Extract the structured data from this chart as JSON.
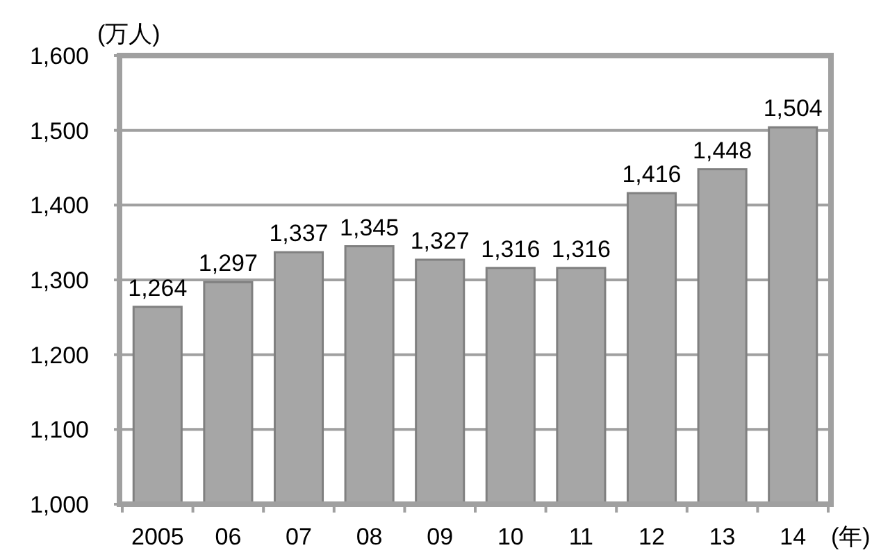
{
  "chart_data": {
    "type": "bar",
    "ylabel": "(万人)",
    "xlabel": "(年)",
    "categories": [
      "2005",
      "06",
      "07",
      "08",
      "09",
      "10",
      "11",
      "12",
      "13",
      "14"
    ],
    "values": [
      1264,
      1297,
      1337,
      1345,
      1327,
      1316,
      1316,
      1416,
      1448,
      1504
    ],
    "value_labels": [
      "1,264",
      "1,297",
      "1,337",
      "1,345",
      "1,327",
      "1,316",
      "1,316",
      "1,416",
      "1,448",
      "1,504"
    ],
    "color": "#a6a6a6",
    "ylim": [
      1000,
      1600
    ],
    "yticks": [
      {
        "value": 1000,
        "label": "1,000"
      },
      {
        "value": 1100,
        "label": "1,100"
      },
      {
        "value": 1200,
        "label": "1,200"
      },
      {
        "value": 1300,
        "label": "1,300"
      },
      {
        "value": 1400,
        "label": "1,400"
      },
      {
        "value": 1500,
        "label": "1,500"
      },
      {
        "value": 1600,
        "label": "1,600"
      }
    ],
    "grid": "y"
  }
}
